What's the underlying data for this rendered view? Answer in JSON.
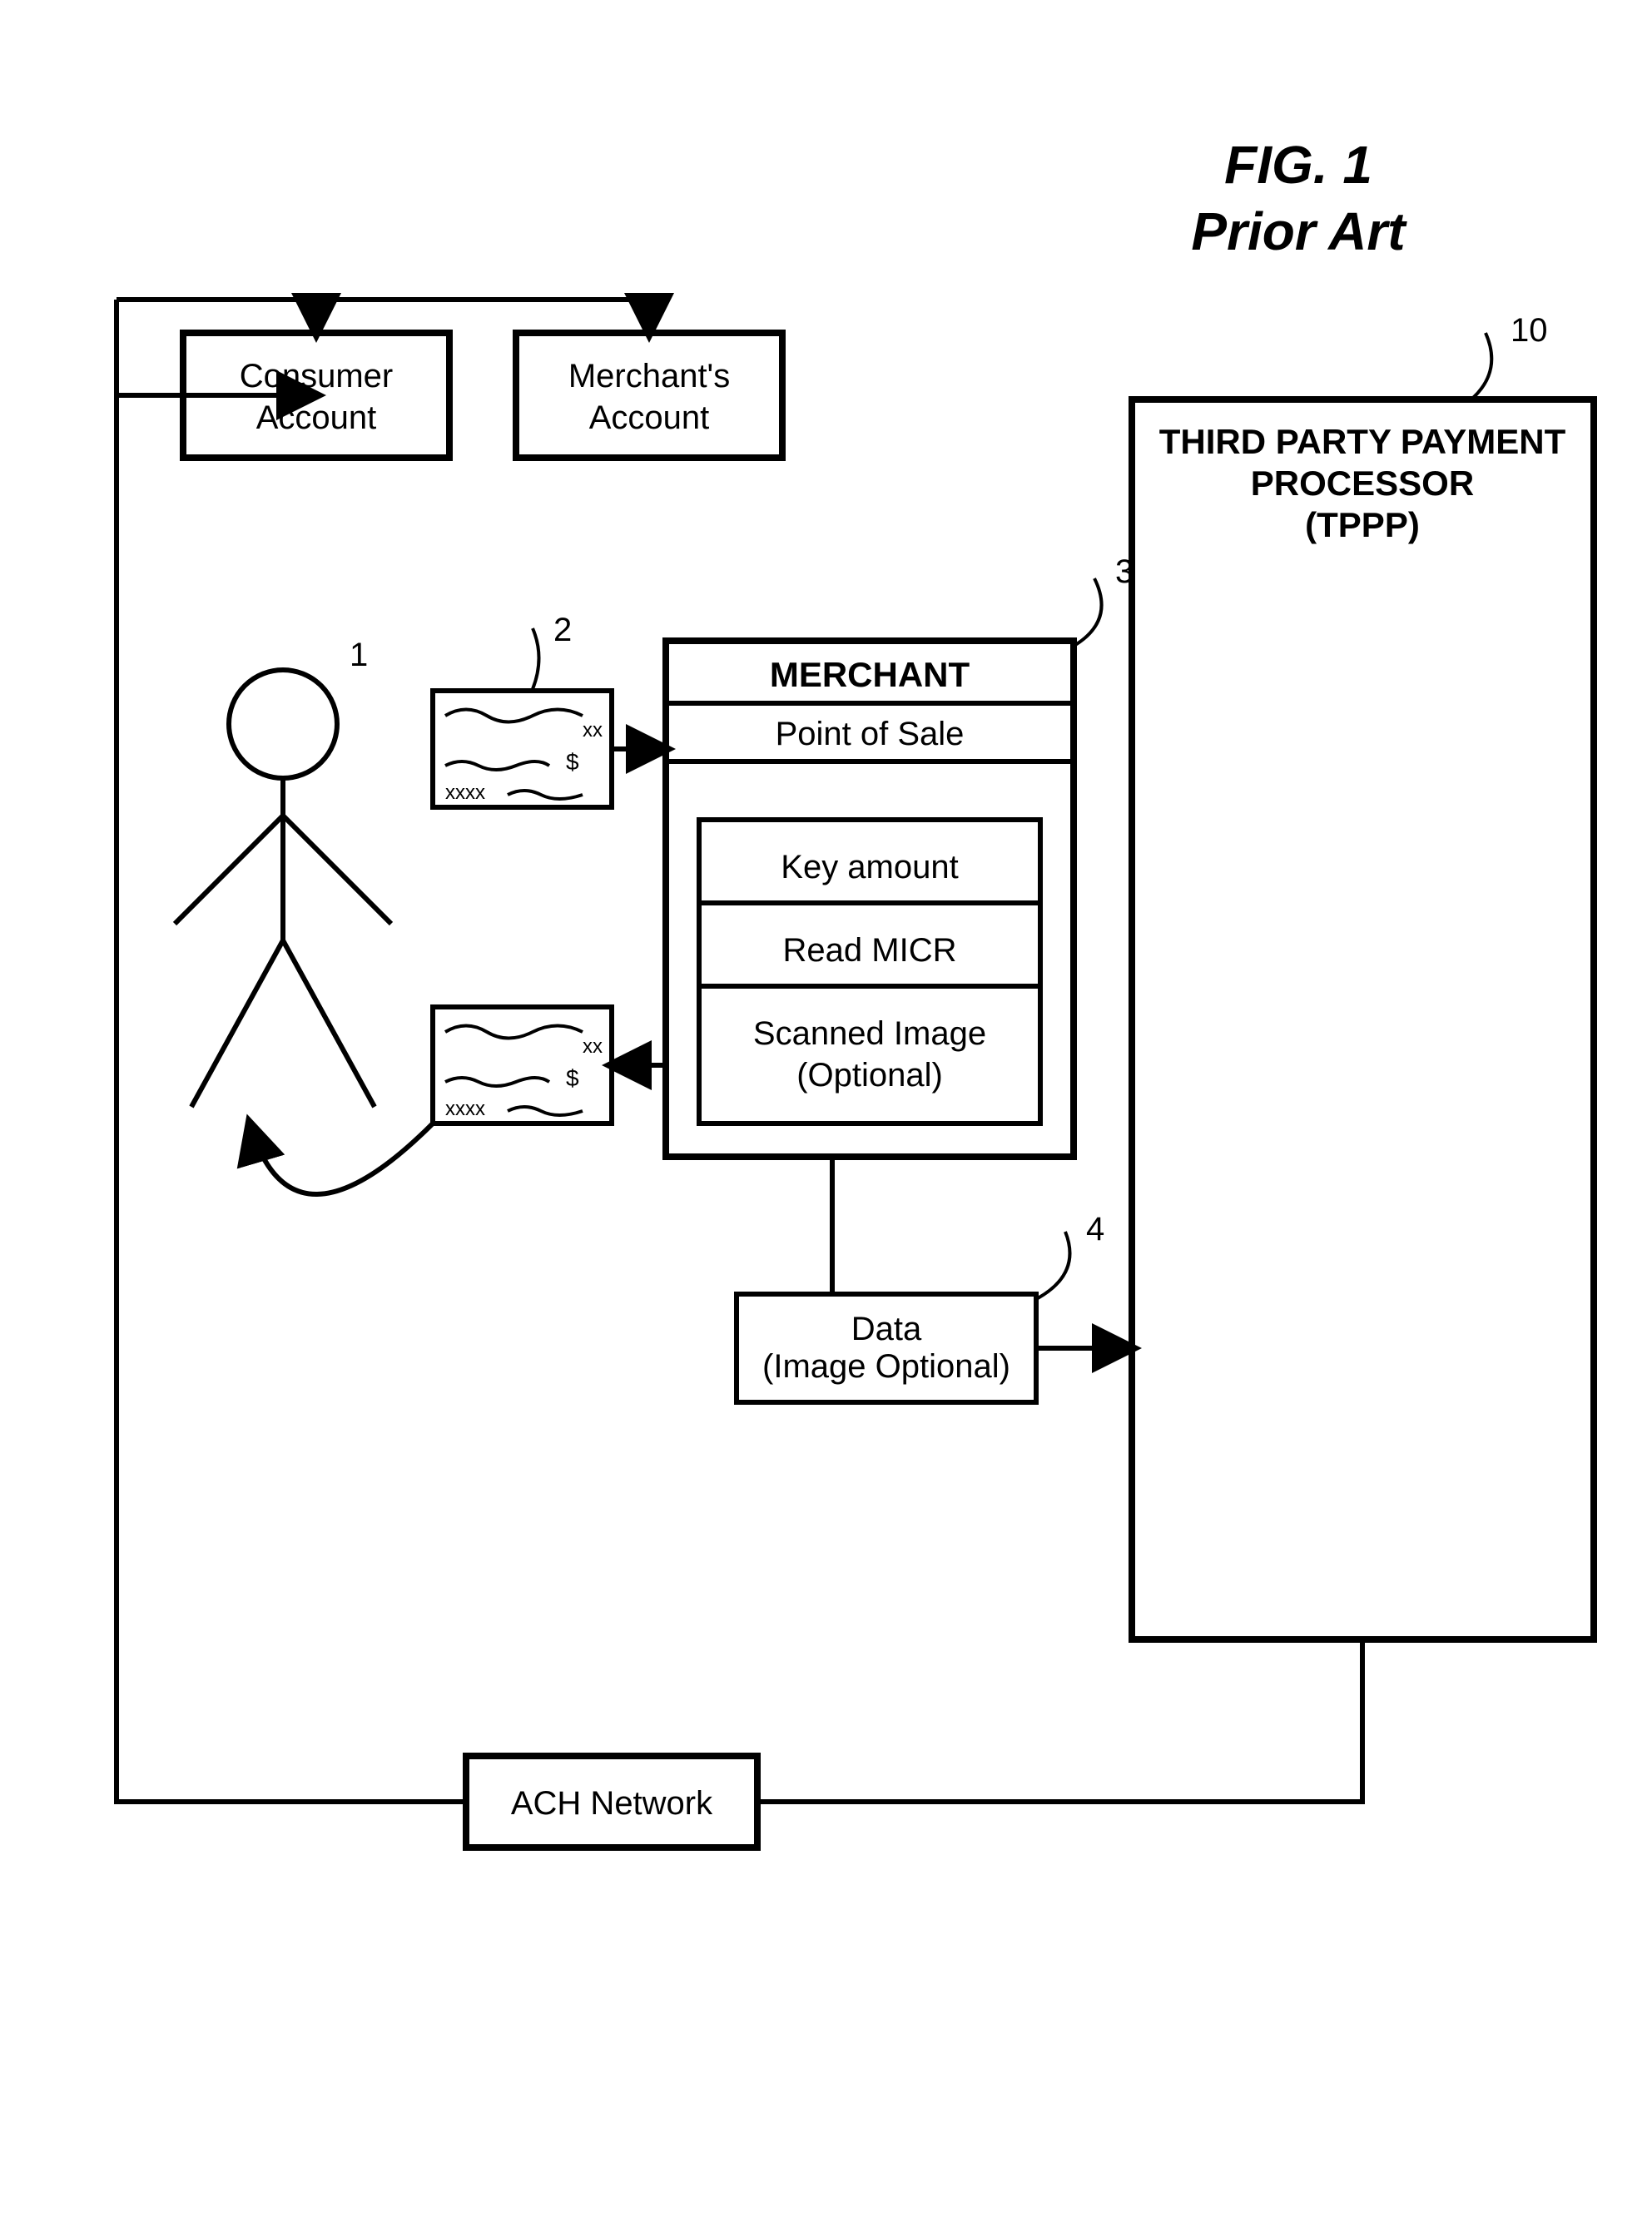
{
  "figure": {
    "title_line1": "FIG. 1",
    "title_line2": "Prior Art",
    "title_fontsize": 64,
    "title_fontstyle": "italic",
    "title_fontweight": "bold"
  },
  "consumer_account": {
    "line1": "Consumer",
    "line2": "Account"
  },
  "merchant_account": {
    "line1": "Merchant's",
    "line2": "Account"
  },
  "merchant": {
    "title": "MERCHANT",
    "pos": "Point of Sale",
    "key_amount": "Key amount",
    "read_micr": "Read MICR",
    "scanned_line1": "Scanned Image",
    "scanned_line2": "(Optional)"
  },
  "tppp": {
    "line1": "THIRD PARTY PAYMENT",
    "line2": "PROCESSOR",
    "line3": "(TPPP)"
  },
  "data_box": {
    "line1": "Data",
    "line2": "(Image Optional)"
  },
  "ach": {
    "label": "ACH Network"
  },
  "check": {
    "xxxx": "xxxx",
    "xx": "xx",
    "dollar": "$"
  },
  "refs": {
    "r1": "1",
    "r2": "2",
    "r3": "3",
    "r4": "4",
    "r10": "10"
  },
  "style": {
    "viewbox_w": 1985,
    "viewbox_h": 2664,
    "stroke": "#000000",
    "stroke_thin": 4,
    "stroke_mid": 6,
    "stroke_thick": 8,
    "font_body": 40,
    "font_body_sm": 36,
    "font_merchant_title": 42,
    "font_tppp": 42,
    "colors": {
      "bg": "#ffffff",
      "fg": "#000000"
    }
  }
}
